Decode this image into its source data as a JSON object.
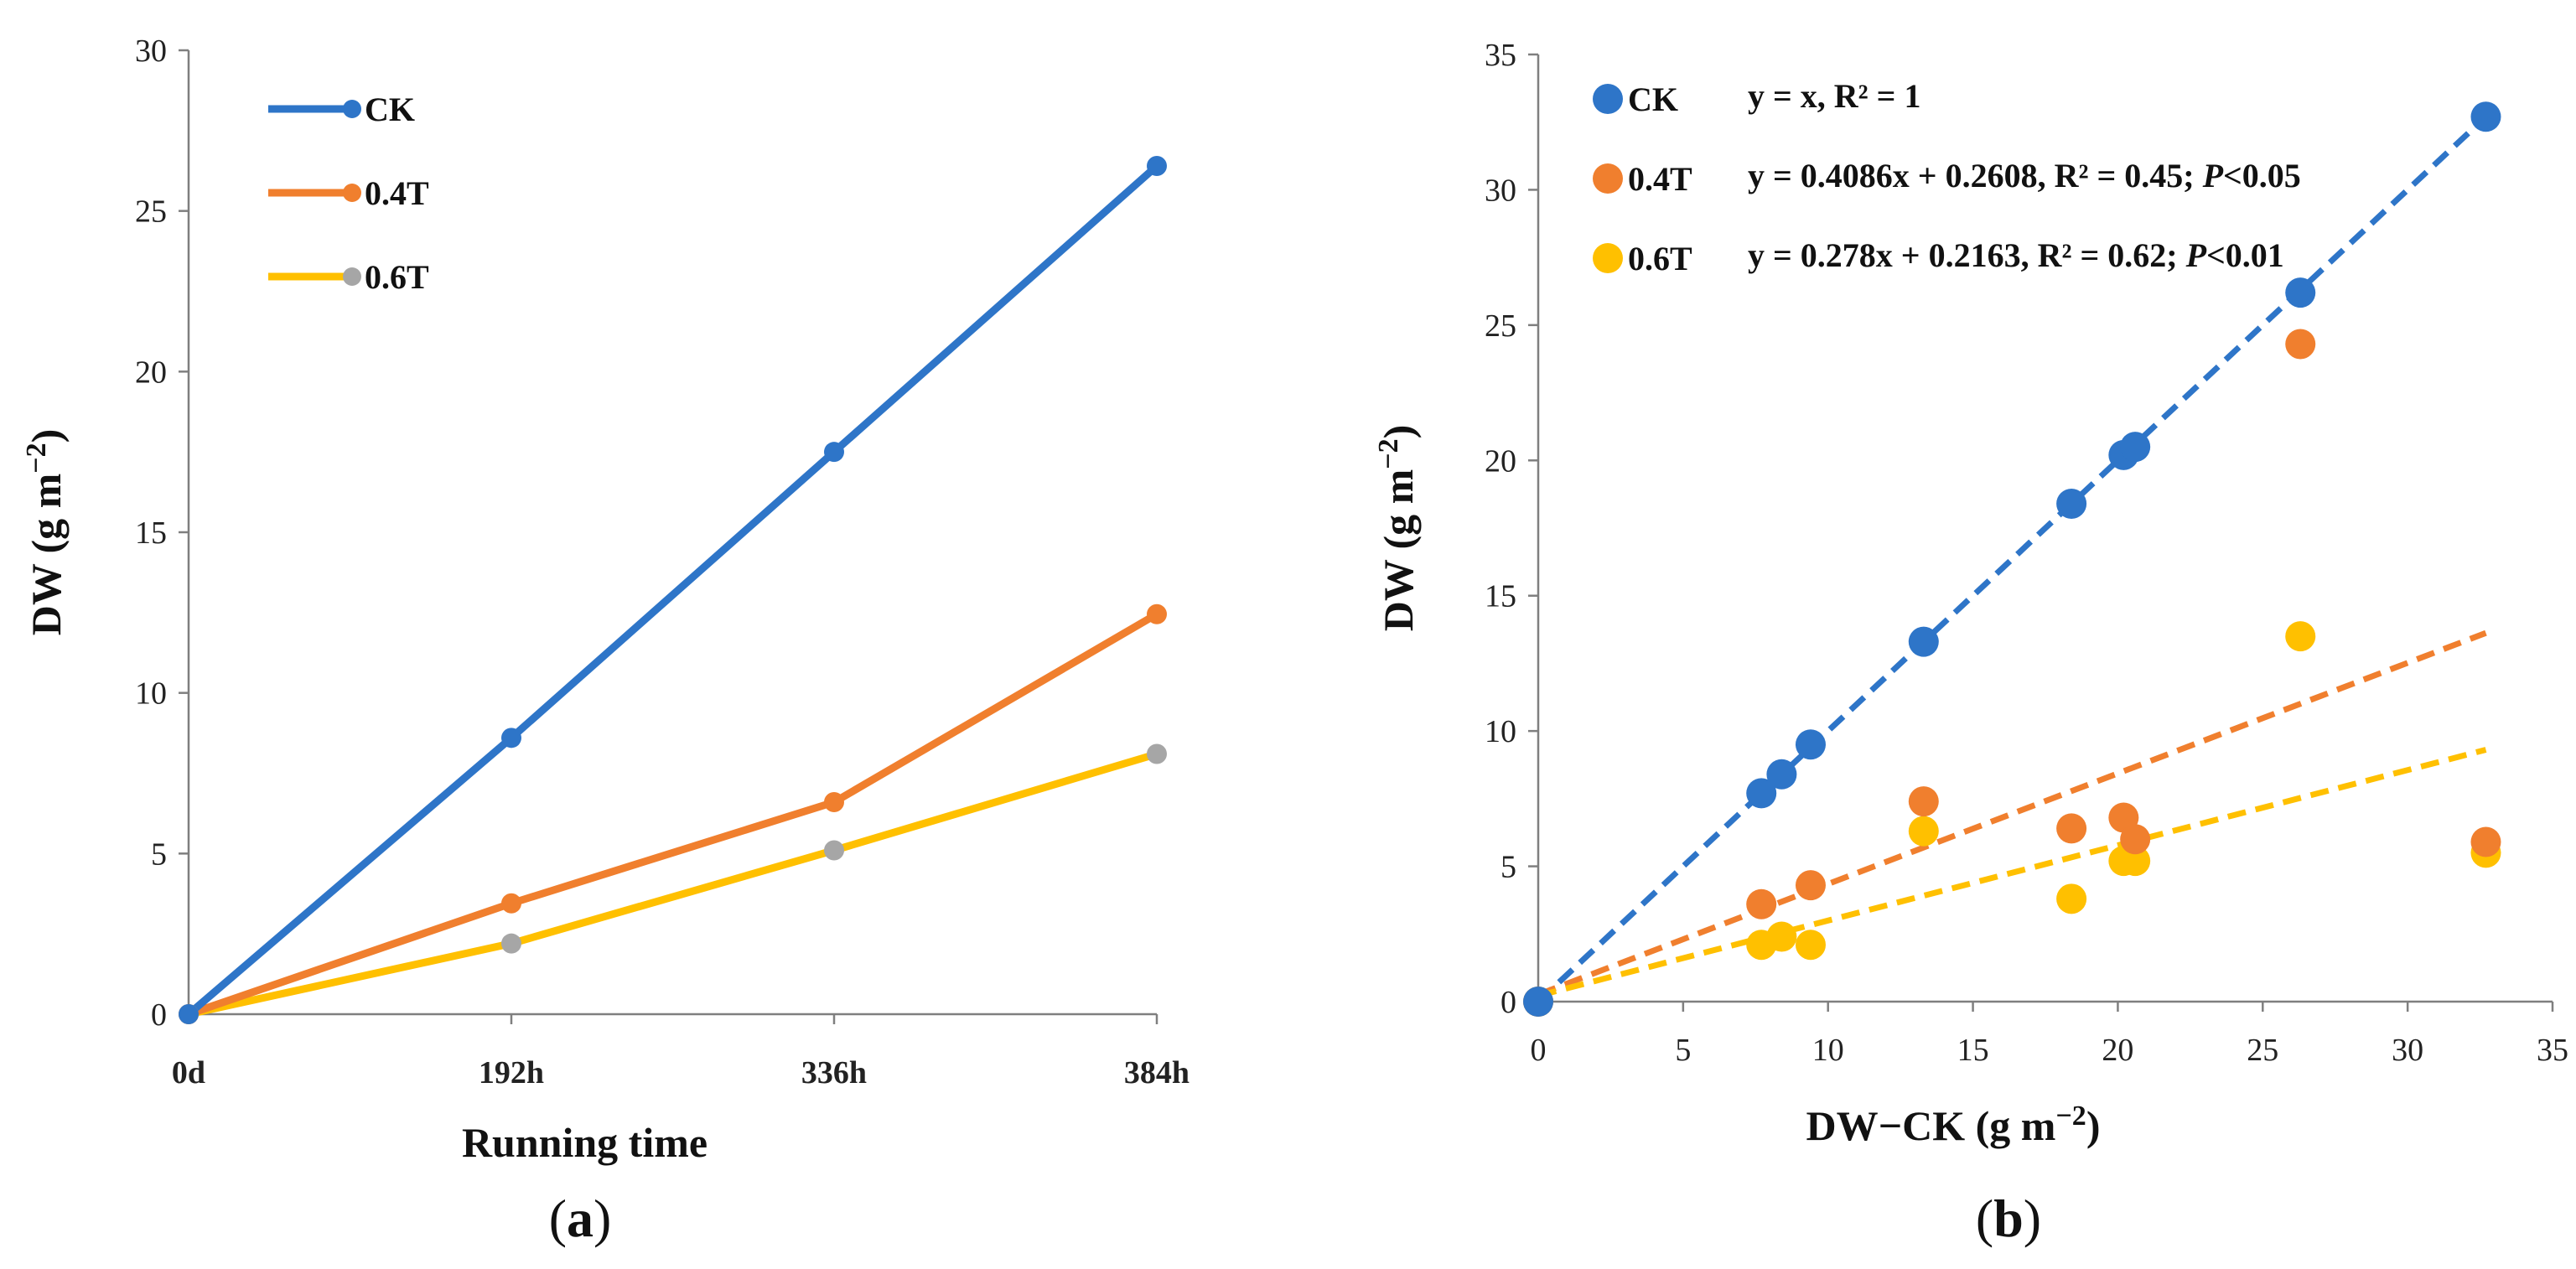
{
  "colors": {
    "CK": "#2e75c8",
    "T04": "#f07f2e",
    "T06": "#ffc000",
    "marker_06_panel_a": "#a6a6a6",
    "axis": "#7f7f7f"
  },
  "panel_labels": {
    "a": "a",
    "b": "b"
  },
  "chart_data": [
    {
      "type": "line",
      "panel": "a",
      "categories": [
        "0d",
        "192h",
        "336h",
        "384h"
      ],
      "xlabel": "Running time",
      "ylabel": "DW (g m−2)",
      "ylabel_main": "DW (g m",
      "ylabel_sup": "−2",
      "ylabel_close": ")",
      "ylim": [
        0,
        30
      ],
      "yticks": [
        "0",
        "5",
        "10",
        "15",
        "20",
        "25",
        "30"
      ],
      "grid": false,
      "legend": "top-left",
      "series": [
        {
          "name": "CK",
          "values": [
            0,
            8.6,
            17.5,
            26.4
          ]
        },
        {
          "name": "0.4T",
          "values": [
            0,
            3.45,
            6.6,
            12.45
          ]
        },
        {
          "name": "0.6T",
          "values": [
            0,
            2.2,
            5.1,
            8.1
          ]
        }
      ]
    },
    {
      "type": "scatter",
      "panel": "b",
      "xlabel": "DW−CK (g m−2)",
      "xlabel_main": "DW−CK (g m",
      "xlabel_sup": "−2",
      "xlabel_close": ")",
      "ylabel": "DW (g m−2)",
      "ylabel_main": "DW (g m",
      "ylabel_sup": "−2",
      "ylabel_close": ")",
      "xlim": [
        0,
        35
      ],
      "ylim": [
        0,
        35
      ],
      "xticks": [
        "0",
        "5",
        "10",
        "15",
        "20",
        "25",
        "30",
        "35"
      ],
      "yticks": [
        "0",
        "5",
        "10",
        "15",
        "20",
        "25",
        "30",
        "35"
      ],
      "grid": false,
      "legend": "top-left",
      "series": [
        {
          "name": "CK",
          "equation_parts": [
            "y = x, R² = 1"
          ],
          "fit": {
            "slope": 1,
            "intercept": 0,
            "x_end": 32.7
          },
          "points": [
            [
              0,
              0
            ],
            [
              7.7,
              7.7
            ],
            [
              8.4,
              8.4
            ],
            [
              9.4,
              9.5
            ],
            [
              13.3,
              13.3
            ],
            [
              18.4,
              18.4
            ],
            [
              20.2,
              20.2
            ],
            [
              20.6,
              20.5
            ],
            [
              26.3,
              26.2
            ],
            [
              32.7,
              32.7
            ]
          ]
        },
        {
          "name": "0.4T",
          "equation_parts": [
            "y = 0.4086x + 0.2608, R² = 0.45; ",
            "P",
            "<0.05"
          ],
          "fit": {
            "slope": 0.4086,
            "intercept": 0.2608,
            "x_end": 32.7
          },
          "points": [
            [
              0,
              0
            ],
            [
              7.7,
              3.6
            ],
            [
              9.4,
              4.3
            ],
            [
              13.3,
              7.4
            ],
            [
              18.4,
              6.4
            ],
            [
              20.2,
              6.8
            ],
            [
              20.6,
              6.0
            ],
            [
              26.3,
              24.3
            ],
            [
              32.7,
              5.9
            ]
          ]
        },
        {
          "name": "0.6T",
          "equation_parts": [
            "y = 0.278x + 0.2163, R² = 0.62; ",
            "P",
            "<0.01"
          ],
          "fit": {
            "slope": 0.278,
            "intercept": 0.2163,
            "x_end": 32.7
          },
          "points": [
            [
              0,
              0
            ],
            [
              7.7,
              2.1
            ],
            [
              8.4,
              2.4
            ],
            [
              9.4,
              2.1
            ],
            [
              13.3,
              6.3
            ],
            [
              18.4,
              3.8
            ],
            [
              20.2,
              5.2
            ],
            [
              20.6,
              5.2
            ],
            [
              26.3,
              13.5
            ],
            [
              32.7,
              5.5
            ]
          ]
        }
      ]
    }
  ]
}
